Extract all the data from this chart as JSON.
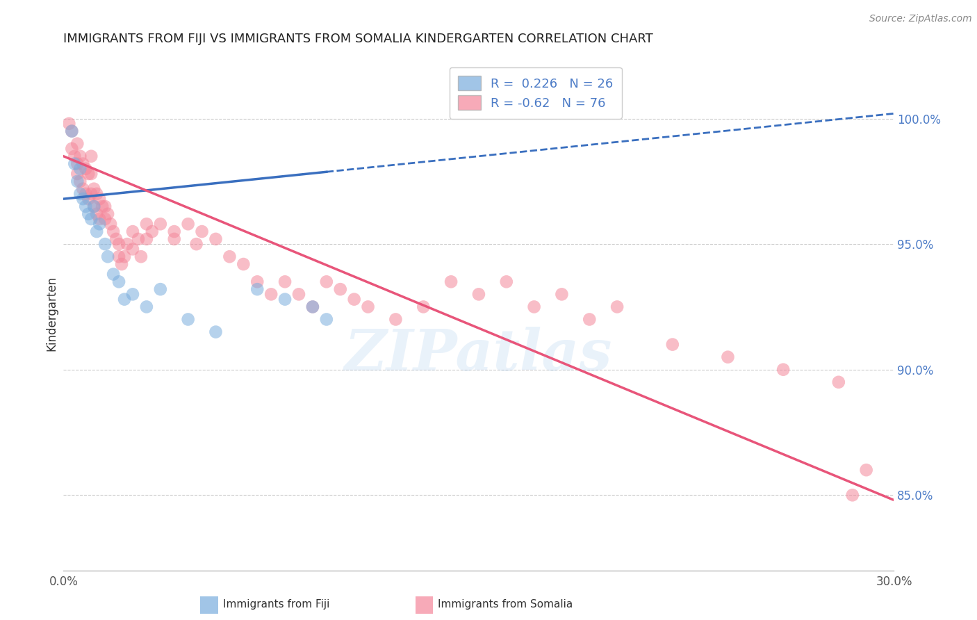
{
  "title": "IMMIGRANTS FROM FIJI VS IMMIGRANTS FROM SOMALIA KINDERGARTEN CORRELATION CHART",
  "source": "Source: ZipAtlas.com",
  "ylabel": "Kindergarten",
  "x_min": 0.0,
  "x_max": 30.0,
  "y_min": 82.0,
  "y_max": 102.5,
  "right_yticks": [
    85.0,
    90.0,
    95.0,
    100.0
  ],
  "fiji_color": "#7AADDD",
  "somalia_color": "#F4879A",
  "line_fiji_color": "#3A6FBF",
  "line_somalia_color": "#E8557A",
  "fiji_R": 0.226,
  "fiji_N": 26,
  "somalia_R": -0.62,
  "somalia_N": 76,
  "background_color": "#FFFFFF",
  "grid_color": "#CCCCCC",
  "title_fontsize": 13,
  "axis_label_color": "#4D7CC7",
  "fiji_scatter_x": [
    0.3,
    0.4,
    0.5,
    0.6,
    0.6,
    0.7,
    0.8,
    0.9,
    1.0,
    1.1,
    1.2,
    1.3,
    1.5,
    1.6,
    1.8,
    2.0,
    2.2,
    2.5,
    3.0,
    3.5,
    4.5,
    5.5,
    7.0,
    8.0,
    9.0,
    9.5
  ],
  "fiji_scatter_y": [
    99.5,
    98.2,
    97.5,
    98.0,
    97.0,
    96.8,
    96.5,
    96.2,
    96.0,
    96.5,
    95.5,
    95.8,
    95.0,
    94.5,
    93.8,
    93.5,
    92.8,
    93.0,
    92.5,
    93.2,
    92.0,
    91.5,
    93.2,
    92.8,
    92.5,
    92.0
  ],
  "somalia_scatter_x": [
    0.2,
    0.3,
    0.3,
    0.4,
    0.5,
    0.5,
    0.5,
    0.6,
    0.6,
    0.7,
    0.7,
    0.8,
    0.8,
    0.9,
    0.9,
    1.0,
    1.0,
    1.0,
    1.1,
    1.1,
    1.2,
    1.2,
    1.3,
    1.3,
    1.4,
    1.5,
    1.5,
    1.6,
    1.7,
    1.8,
    1.9,
    2.0,
    2.0,
    2.1,
    2.2,
    2.3,
    2.5,
    2.5,
    2.7,
    2.8,
    3.0,
    3.0,
    3.2,
    3.5,
    4.0,
    4.0,
    4.5,
    4.8,
    5.0,
    5.5,
    6.0,
    6.5,
    7.0,
    7.5,
    8.0,
    8.5,
    9.0,
    9.5,
    10.0,
    10.5,
    11.0,
    12.0,
    13.0,
    14.0,
    15.0,
    16.0,
    17.0,
    18.0,
    19.0,
    20.0,
    22.0,
    24.0,
    26.0,
    28.0,
    28.5,
    29.0
  ],
  "somalia_scatter_y": [
    99.8,
    99.5,
    98.8,
    98.5,
    99.0,
    98.2,
    97.8,
    98.5,
    97.5,
    98.2,
    97.2,
    98.0,
    97.0,
    97.8,
    96.8,
    98.5,
    97.8,
    97.0,
    97.2,
    96.5,
    97.0,
    96.2,
    96.8,
    96.0,
    96.5,
    96.5,
    96.0,
    96.2,
    95.8,
    95.5,
    95.2,
    95.0,
    94.5,
    94.2,
    94.5,
    95.0,
    95.5,
    94.8,
    95.2,
    94.5,
    95.8,
    95.2,
    95.5,
    95.8,
    95.5,
    95.2,
    95.8,
    95.0,
    95.5,
    95.2,
    94.5,
    94.2,
    93.5,
    93.0,
    93.5,
    93.0,
    92.5,
    93.5,
    93.2,
    92.8,
    92.5,
    92.0,
    92.5,
    93.5,
    93.0,
    93.5,
    92.5,
    93.0,
    92.0,
    92.5,
    91.0,
    90.5,
    90.0,
    89.5,
    85.0,
    86.0
  ],
  "fiji_line_x0": 0.0,
  "fiji_line_y0": 96.8,
  "fiji_line_x1": 30.0,
  "fiji_line_y1": 100.2,
  "somalia_line_x0": 0.0,
  "somalia_line_y0": 98.5,
  "somalia_line_x1": 30.0,
  "somalia_line_y1": 84.8
}
